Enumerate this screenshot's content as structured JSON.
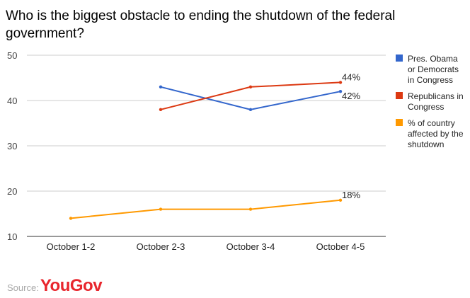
{
  "chart_data": {
    "type": "line",
    "title": "Who is the biggest obstacle to ending the shutdown of the federal government?",
    "categories": [
      "October 1-2",
      "October 2-3",
      "October 3-4",
      "October 4-5"
    ],
    "ylim": [
      10,
      50
    ],
    "yticks": [
      10,
      20,
      30,
      40,
      50
    ],
    "grid": true,
    "legend_position": "right",
    "series": [
      {
        "name": "Pres. Obama or Democrats in Congress",
        "legend_lines": [
          "Pres. Obama",
          "or Democrats",
          "in Congress"
        ],
        "color": "#3366cc",
        "values": [
          null,
          43,
          38,
          42
        ],
        "end_label": "42%"
      },
      {
        "name": "Republicans in Congress",
        "legend_lines": [
          "Republicans in",
          "Congress"
        ],
        "color": "#dc3912",
        "values": [
          null,
          38,
          43,
          44
        ],
        "end_label": "44%"
      },
      {
        "name": "% of country affected by the shutdown",
        "legend_lines": [
          "% of country",
          "affected by the",
          "shutdown"
        ],
        "color": "#ff9900",
        "values": [
          14,
          16,
          16,
          18
        ],
        "end_label": "18%"
      }
    ]
  },
  "source": {
    "label": "Source:",
    "brand": "YouGov"
  }
}
